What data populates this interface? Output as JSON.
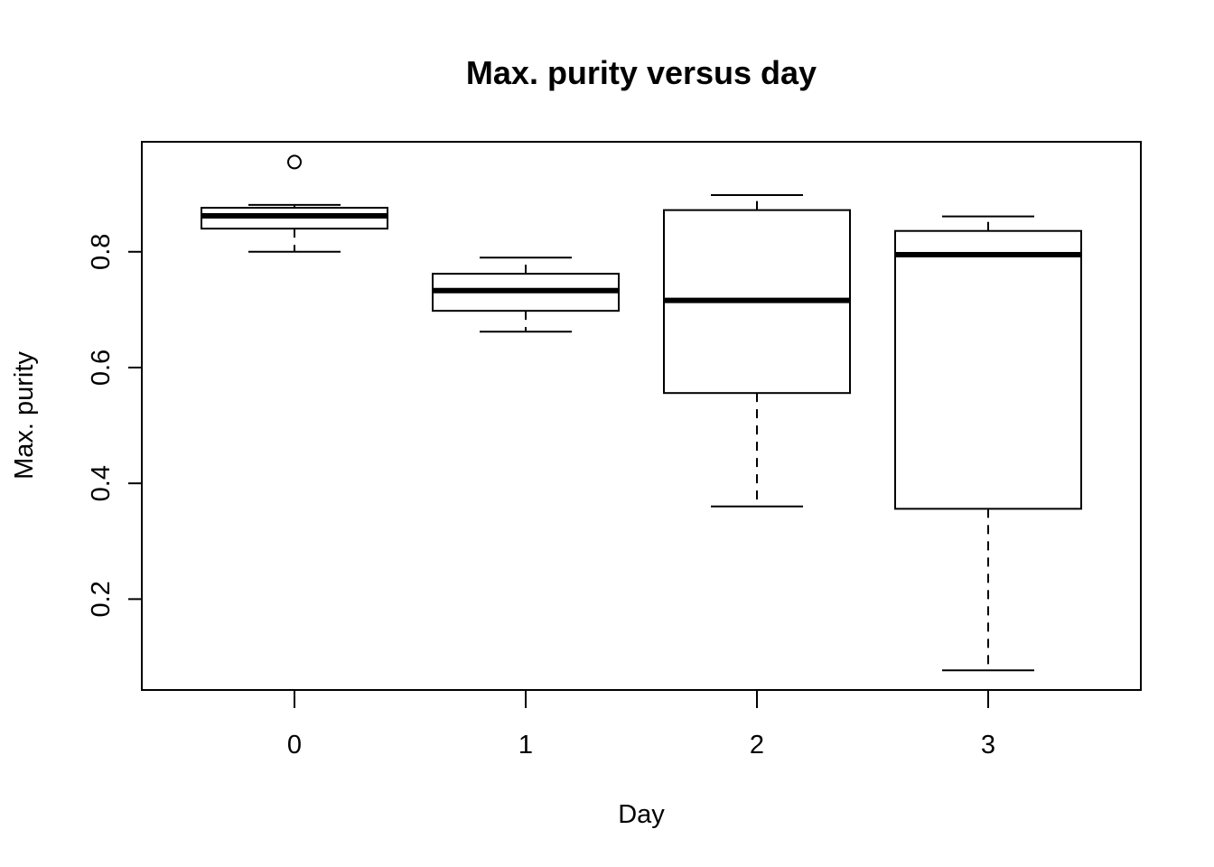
{
  "chart_data": {
    "type": "boxplot",
    "title": "Max. purity versus day",
    "xlabel": "Day",
    "ylabel": "Max. purity",
    "ylim": [
      0.043,
      0.99
    ],
    "y_ticks": [
      0.2,
      0.4,
      0.6,
      0.8
    ],
    "y_tick_labels": [
      "0.2",
      "0.4",
      "0.6",
      "0.8"
    ],
    "categories": [
      "0",
      "1",
      "2",
      "3"
    ],
    "boxes": [
      {
        "category": "0",
        "whisker_low": 0.8,
        "q1": 0.84,
        "median": 0.862,
        "q3": 0.876,
        "whisker_high": 0.881,
        "outliers": [
          0.955
        ]
      },
      {
        "category": "1",
        "whisker_low": 0.662,
        "q1": 0.698,
        "median": 0.733,
        "q3": 0.762,
        "whisker_high": 0.79,
        "outliers": []
      },
      {
        "category": "2",
        "whisker_low": 0.36,
        "q1": 0.556,
        "median": 0.716,
        "q3": 0.872,
        "whisker_high": 0.898,
        "outliers": []
      },
      {
        "category": "3",
        "whisker_low": 0.077,
        "q1": 0.356,
        "median": 0.795,
        "q3": 0.836,
        "whisker_high": 0.861,
        "outliers": []
      }
    ],
    "colors": {
      "line": "#000000",
      "box_fill": "#ffffff"
    }
  }
}
